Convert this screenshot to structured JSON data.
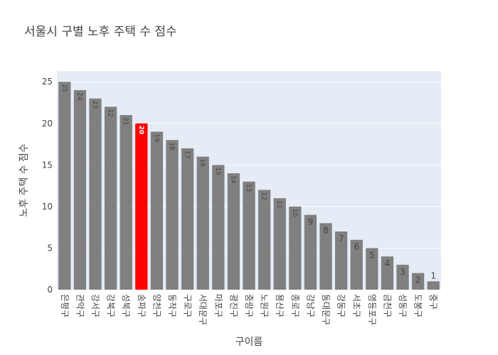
{
  "chart_data": {
    "type": "bar",
    "title": "서울시 구별 노후 주택 수 점수",
    "xlabel": "구이름",
    "ylabel": "노후 주택 수 점수",
    "categories": [
      "은평구",
      "관악구",
      "강서구",
      "강북구",
      "성북구",
      "송파구",
      "양천구",
      "동작구",
      "구로구",
      "서대문구",
      "마포구",
      "광진구",
      "중랑구",
      "노원구",
      "용산구",
      "종로구",
      "강남구",
      "동대문구",
      "강동구",
      "서초구",
      "영등포구",
      "금천구",
      "성동구",
      "도봉구",
      "중구"
    ],
    "values": [
      25,
      24,
      23,
      22,
      21,
      20,
      19,
      18,
      17,
      16,
      15,
      14,
      13,
      12,
      11,
      10,
      9,
      8,
      7,
      6,
      5,
      4,
      3,
      2,
      1
    ],
    "highlight_category": "송파구",
    "ylim": [
      0,
      26.3
    ],
    "yticks": [
      0,
      5,
      10,
      15,
      20,
      25
    ],
    "grid": true,
    "colors": {
      "bar": "#808080",
      "highlight": "#ff0000",
      "plot_bg": "#e5ecf6",
      "grid": "#ffffff",
      "text": "#444444",
      "label_on_gray": "#444444",
      "label_on_red": "#ffffff"
    }
  }
}
